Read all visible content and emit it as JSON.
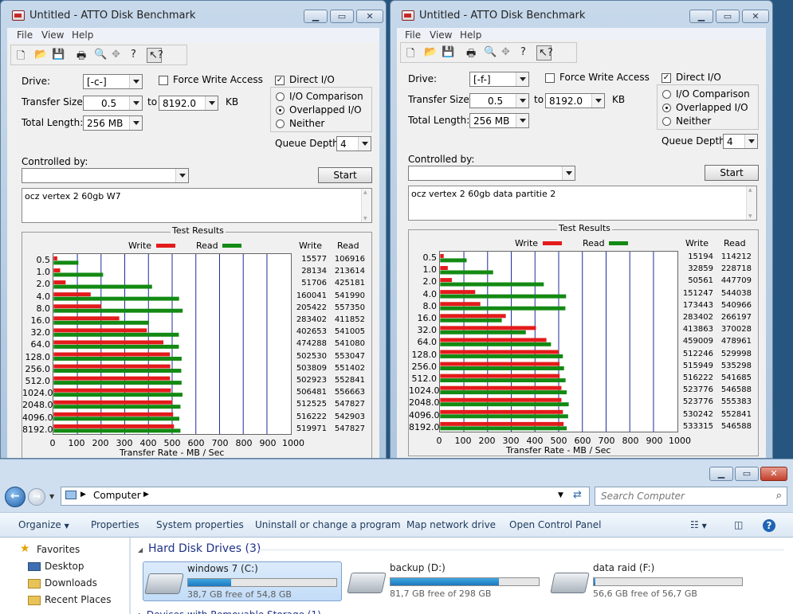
{
  "colors": {
    "write": "#e31b1b",
    "read": "#138a13",
    "grid": "#1c2a9c",
    "selection": "#cfe3fa"
  },
  "atto": {
    "menu": [
      "File",
      "View",
      "Help"
    ],
    "labels": {
      "drive": "Drive:",
      "transfer_size": "Transfer Size:",
      "to": "to",
      "kb": "KB",
      "total_length": "Total Length:",
      "force_write": "Force Write Access",
      "direct_io": "Direct I/O",
      "io_comparison": "I/O Comparison",
      "overlapped_io": "Overlapped I/O",
      "neither": "Neither",
      "queue_depth": "Queue Depth:",
      "controlled_by": "Controlled by:",
      "start": "Start",
      "test_results": "Test Results",
      "write": "Write",
      "read": "Read",
      "write_col": "Write",
      "read_col": "Read",
      "xaxis_title": "Transfer Rate - MB / Sec"
    },
    "x_ticks": [
      "0",
      "100",
      "200",
      "300",
      "400",
      "500",
      "600",
      "700",
      "800",
      "900",
      "1000"
    ],
    "block_sizes": [
      "0.5",
      "1.0",
      "2.0",
      "4.0",
      "8.0",
      "16.0",
      "32.0",
      "64.0",
      "128.0",
      "256.0",
      "512.0",
      "1024.0",
      "2048.0",
      "4096.0",
      "8192.0"
    ]
  },
  "windows": [
    {
      "title": "Untitled - ATTO Disk Benchmark",
      "drive": "[-c-]",
      "transfer_from": "0.5",
      "transfer_to": "8192.0",
      "total_length": "256 MB",
      "queue_depth": "4",
      "force_write": false,
      "direct_io": true,
      "io_mode": "Overlapped I/O",
      "controlled_by": "",
      "description": "ocz vertex 2 60gb W7"
    },
    {
      "title": "Untitled - ATTO Disk Benchmark",
      "drive": "[-f-]",
      "transfer_from": "0.5",
      "transfer_to": "8192.0",
      "total_length": "256 MB",
      "queue_depth": "4",
      "force_write": false,
      "direct_io": true,
      "io_mode": "Overlapped I/O",
      "controlled_by": "",
      "description": "ocz vertex 2 60gb data partitie 2"
    }
  ],
  "chart_data": [
    {
      "type": "bar",
      "orientation": "horizontal",
      "title": "Test Results",
      "xlabel": "Transfer Rate - MB / Sec",
      "xlim": [
        0,
        1000
      ],
      "categories": [
        "0.5",
        "1.0",
        "2.0",
        "4.0",
        "8.0",
        "16.0",
        "32.0",
        "64.0",
        "128.0",
        "256.0",
        "512.0",
        "1024.0",
        "2048.0",
        "4096.0",
        "8192.0"
      ],
      "units": "KB/s",
      "series": [
        {
          "name": "Write",
          "values": [
            15577,
            28134,
            51706,
            160041,
            205422,
            283402,
            402653,
            474288,
            502530,
            503809,
            502923,
            506481,
            512525,
            516222,
            519971
          ]
        },
        {
          "name": "Read",
          "values": [
            106916,
            213614,
            425181,
            541990,
            557350,
            411852,
            541005,
            541080,
            553047,
            551402,
            552841,
            556663,
            547827,
            542903,
            547827
          ]
        }
      ]
    },
    {
      "type": "bar",
      "orientation": "horizontal",
      "title": "Test Results",
      "xlabel": "Transfer Rate - MB / Sec",
      "xlim": [
        0,
        1000
      ],
      "categories": [
        "0.5",
        "1.0",
        "2.0",
        "4.0",
        "8.0",
        "16.0",
        "32.0",
        "64.0",
        "128.0",
        "256.0",
        "512.0",
        "1024.0",
        "2048.0",
        "4096.0",
        "8192.0"
      ],
      "units": "KB/s",
      "series": [
        {
          "name": "Write",
          "values": [
            15194,
            32859,
            50561,
            151247,
            173443,
            283402,
            413863,
            459009,
            512246,
            515949,
            516222,
            523776,
            523776,
            530242,
            533315
          ]
        },
        {
          "name": "Read",
          "values": [
            114212,
            228718,
            447709,
            544038,
            540966,
            266197,
            370028,
            478961,
            529998,
            535298,
            541685,
            546588,
            555383,
            552841,
            546588
          ]
        }
      ]
    }
  ],
  "explorer": {
    "breadcrumb": "Computer",
    "search_placeholder": "Search Computer",
    "commands": [
      "Organize",
      "Properties",
      "System properties",
      "Uninstall or change a program",
      "Map network drive",
      "Open Control Panel"
    ],
    "nav": [
      "Favorites",
      "Desktop",
      "Downloads",
      "Recent Places"
    ],
    "section_title": "Hard Disk Drives (3)",
    "drives": [
      {
        "name": "windows 7 (C:)",
        "free": "38,7 GB free of 54,8 GB",
        "used_fraction": 0.29
      },
      {
        "name": "backup (D:)",
        "free": "81,7 GB free of 298 GB",
        "used_fraction": 0.73
      },
      {
        "name": "data raid (F:)",
        "free": "56,6 GB free of 56,7 GB",
        "used_fraction": 0.01
      }
    ]
  }
}
